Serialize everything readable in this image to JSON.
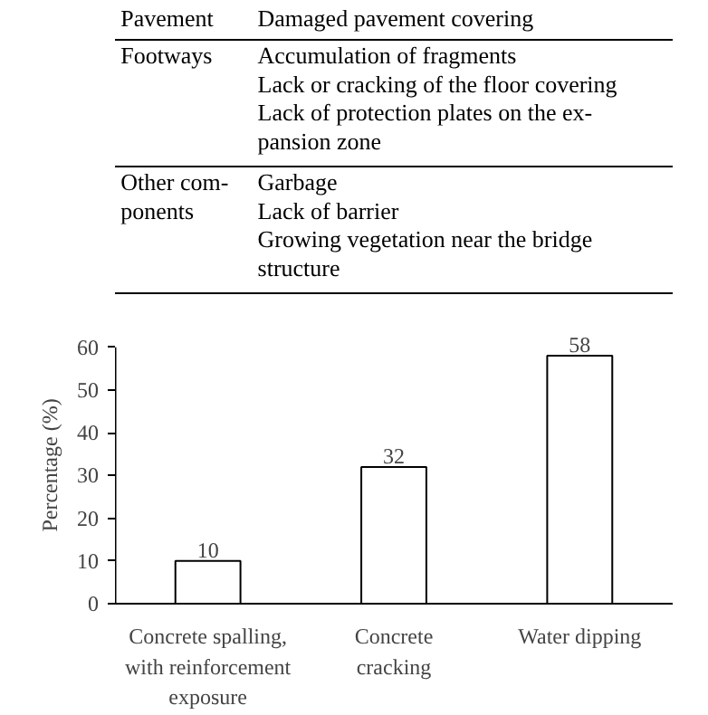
{
  "chart_data": [
    {
      "type": "other",
      "annotations": [
        "Pavement",
        "Damaged pavement covering",
        "Footways",
        "Accumulation of fragments\nLack or cracking of the floor covering\nLack of protection plates on the ex-\npansion zone",
        "Other com-\nponents",
        "Garbage\nLack of barrier\nGrowing vegetation near the bridge\nstructure"
      ]
    },
    {
      "type": "bar",
      "categories": [
        "Concrete spalling,\nwith reinforcement\nexposure",
        "Concrete\ncracking",
        "Water dipping"
      ],
      "values": [
        10,
        32,
        58
      ],
      "color": "#ffffff",
      "ylabel": "Percentage (%)",
      "ylim": [
        0,
        60
      ],
      "yticks": [
        0,
        10,
        20,
        30,
        40,
        50,
        60
      ],
      "data_labels": true,
      "grid": false
    }
  ]
}
